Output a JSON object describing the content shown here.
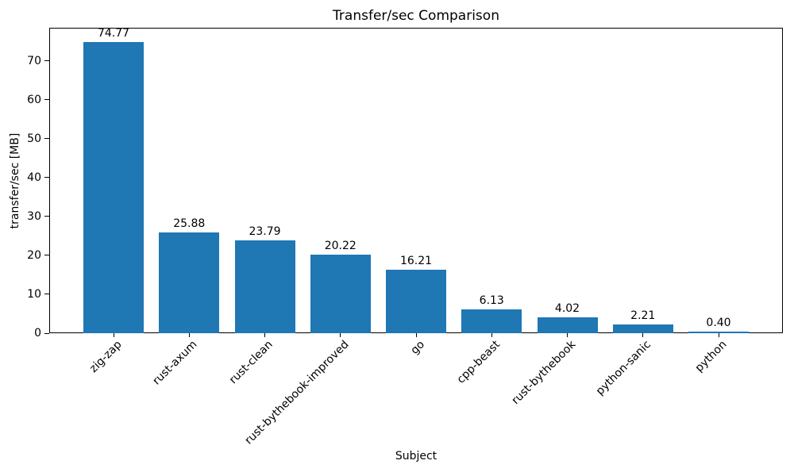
{
  "chart_data": {
    "type": "bar",
    "title": "Transfer/sec Comparison",
    "xlabel": "Subject",
    "ylabel": "transfer/sec [MB]",
    "categories": [
      "zig-zap",
      "rust-axum",
      "rust-clean",
      "rust-bythebook-improved",
      "go",
      "cpp-beast",
      "rust-bythebook",
      "python-sanic",
      "python"
    ],
    "values": [
      74.77,
      25.88,
      23.79,
      20.22,
      16.21,
      6.13,
      4.02,
      2.21,
      0.4
    ],
    "value_labels": [
      "74.77",
      "25.88",
      "23.79",
      "20.22",
      "16.21",
      "6.13",
      "4.02",
      "2.21",
      "0.40"
    ],
    "ylim": [
      0,
      78.5
    ],
    "yticks": [
      0,
      10,
      20,
      30,
      40,
      50,
      60,
      70
    ],
    "xtick_rotation_deg": 45,
    "grid": false,
    "legend_position": "none",
    "bar_color": "#1f77b4",
    "text_color": "#000000",
    "spine_color": "#000000"
  }
}
